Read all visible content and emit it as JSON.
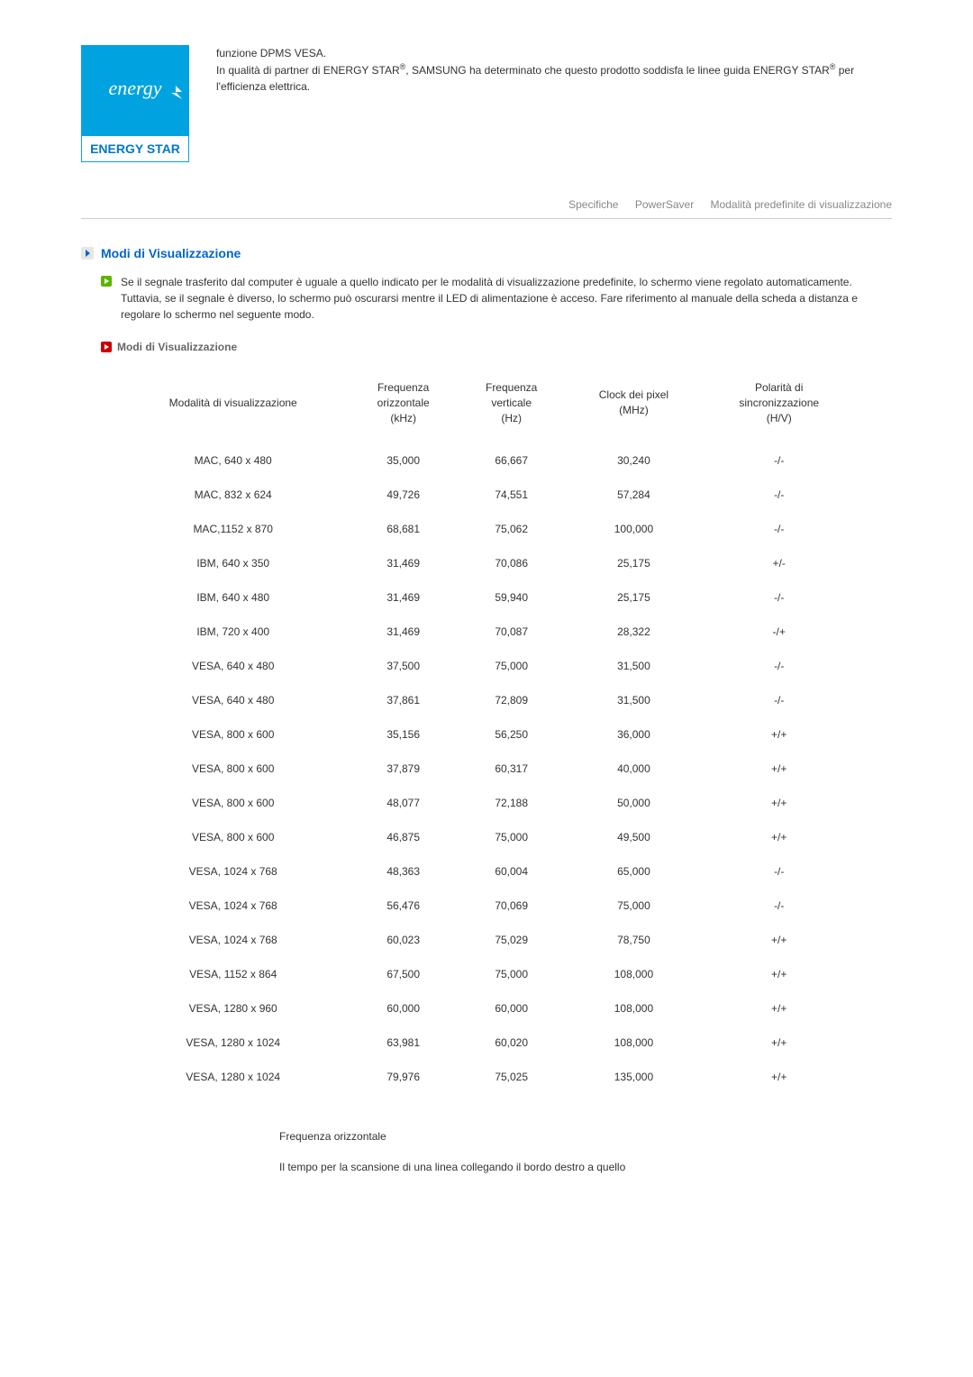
{
  "top": {
    "line1": "funzione DPMS VESA.",
    "line2_part1": "In qualità di partner di ENERGY STAR",
    "line2_part2": ", SAMSUNG ha determinato che questo prodotto soddisfa le linee guida ENERGY STAR",
    "line2_part3": " per l'efficienza elettrica.",
    "reg": "®"
  },
  "tabs": {
    "t1": "Specifiche",
    "t2": "PowerSaver",
    "t3": "Modalità predefinite di visualizzazione"
  },
  "section": {
    "title": "Modi di Visualizzazione",
    "body": "Se il segnale trasferito dal computer è uguale a quello indicato per le modalità di visualizzazione predefinite, lo schermo viene regolato automaticamente. Tuttavia, se il segnale è diverso, lo schermo può oscurarsi mentre il LED di alimentazione è acceso. Fare riferimento al manuale della scheda a distanza e regolare lo schermo nel seguente modo.",
    "subheading": "Modi di Visualizzazione"
  },
  "table": {
    "headers": {
      "c1": "Modalità di visualizzazione",
      "c2a": "Frequenza",
      "c2b": "orizzontale",
      "c2c": "(kHz)",
      "c3a": "Frequenza",
      "c3b": "verticale",
      "c3c": "(Hz)",
      "c4a": "Clock dei pixel",
      "c4b": "(MHz)",
      "c5a": "Polarità di",
      "c5b": "sincronizzazione",
      "c5c": "(H/V)"
    },
    "rows": [
      {
        "mode": "MAC, 640 x 480",
        "h": "35,000",
        "v": "66,667",
        "clk": "30,240",
        "pol": "-/-"
      },
      {
        "mode": "MAC, 832 x 624",
        "h": "49,726",
        "v": "74,551",
        "clk": "57,284",
        "pol": "-/-"
      },
      {
        "mode": "MAC,1152 x 870",
        "h": "68,681",
        "v": "75,062",
        "clk": "100,000",
        "pol": "-/-"
      },
      {
        "mode": "IBM, 640 x 350",
        "h": "31,469",
        "v": "70,086",
        "clk": "25,175",
        "pol": "+/-"
      },
      {
        "mode": "IBM, 640 x 480",
        "h": "31,469",
        "v": "59,940",
        "clk": "25,175",
        "pol": "-/-"
      },
      {
        "mode": "IBM, 720 x 400",
        "h": "31,469",
        "v": "70,087",
        "clk": "28,322",
        "pol": "-/+"
      },
      {
        "mode": "VESA, 640 x 480",
        "h": "37,500",
        "v": "75,000",
        "clk": "31,500",
        "pol": "-/-"
      },
      {
        "mode": "VESA, 640 x 480",
        "h": "37,861",
        "v": "72,809",
        "clk": "31,500",
        "pol": "-/-"
      },
      {
        "mode": "VESA, 800 x 600",
        "h": "35,156",
        "v": "56,250",
        "clk": "36,000",
        "pol": "+/+"
      },
      {
        "mode": "VESA, 800 x 600",
        "h": "37,879",
        "v": "60,317",
        "clk": "40,000",
        "pol": "+/+"
      },
      {
        "mode": "VESA, 800 x 600",
        "h": "48,077",
        "v": "72,188",
        "clk": "50,000",
        "pol": "+/+"
      },
      {
        "mode": "VESA, 800 x 600",
        "h": "46,875",
        "v": "75,000",
        "clk": "49,500",
        "pol": "+/+"
      },
      {
        "mode": "VESA, 1024 x 768",
        "h": "48,363",
        "v": "60,004",
        "clk": "65,000",
        "pol": "-/-"
      },
      {
        "mode": "VESA, 1024 x 768",
        "h": "56,476",
        "v": "70,069",
        "clk": "75,000",
        "pol": "-/-"
      },
      {
        "mode": "VESA, 1024 x 768",
        "h": "60,023",
        "v": "75,029",
        "clk": "78,750",
        "pol": "+/+"
      },
      {
        "mode": "VESA, 1152 x 864",
        "h": "67,500",
        "v": "75,000",
        "clk": "108,000",
        "pol": "+/+"
      },
      {
        "mode": "VESA, 1280 x 960",
        "h": "60,000",
        "v": "60,000",
        "clk": "108,000",
        "pol": "+/+"
      },
      {
        "mode": "VESA, 1280 x 1024",
        "h": "63,981",
        "v": "60,020",
        "clk": "108,000",
        "pol": "+/+"
      },
      {
        "mode": "VESA, 1280 x 1024",
        "h": "79,976",
        "v": "75,025",
        "clk": "135,000",
        "pol": "+/+"
      }
    ]
  },
  "footer": {
    "term": "Frequenza orizzontale",
    "text": "Il tempo per la scansione di una linea collegando il bordo destro a quello"
  },
  "colors": {
    "blue": "#0066cc",
    "green": "#5cb500",
    "red": "#cc0000",
    "energy_blue": "#00a3e0",
    "energy_text": "#0077c8"
  }
}
